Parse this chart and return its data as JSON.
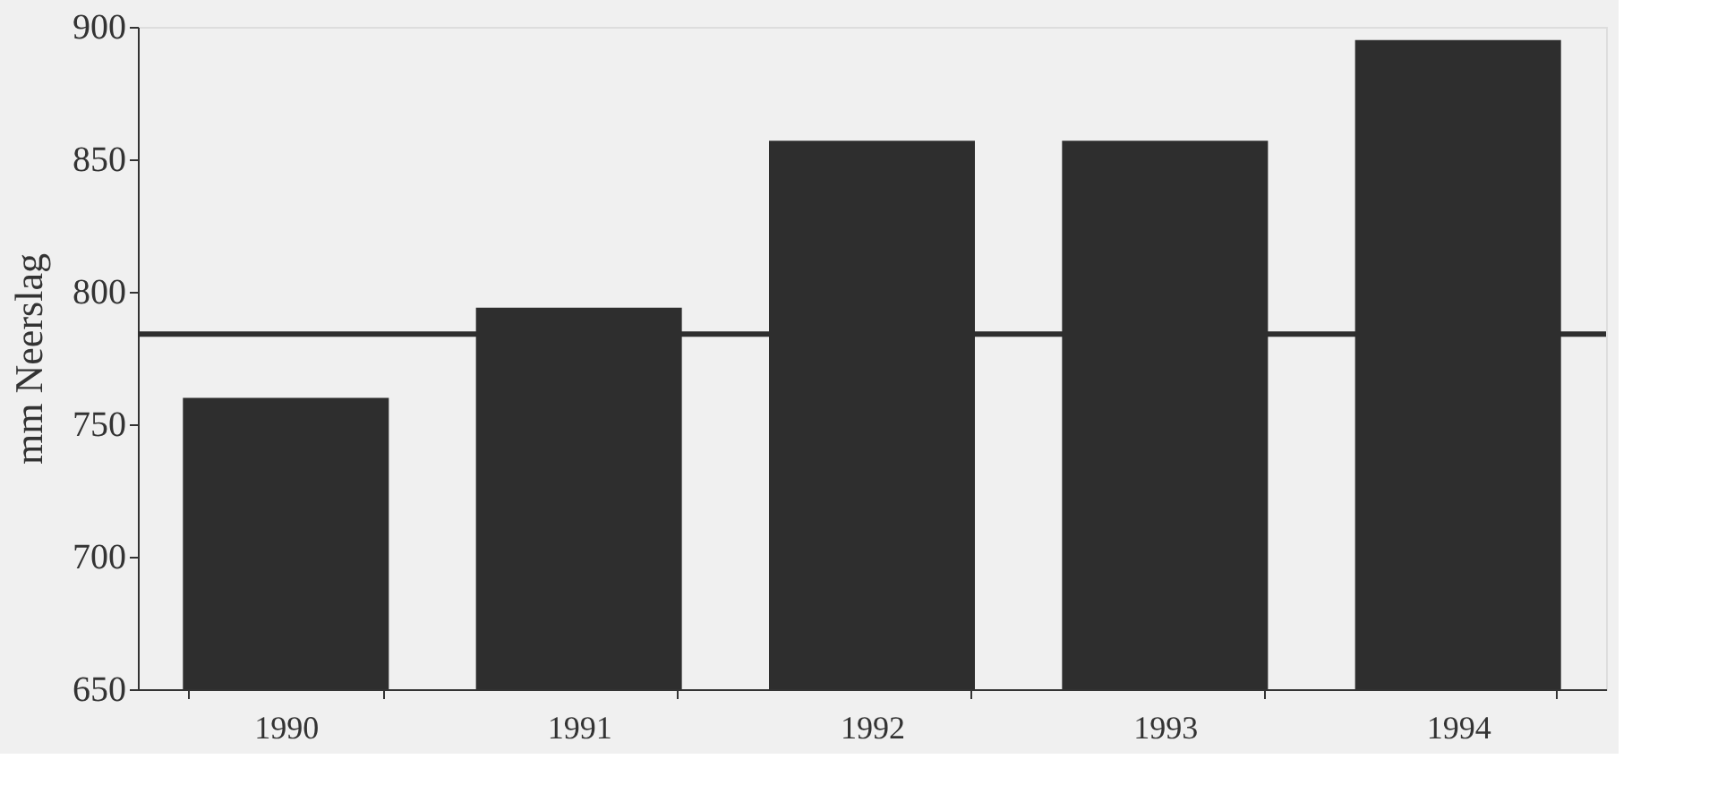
{
  "chart_data": {
    "type": "bar",
    "ylabel": "mm Neerslag",
    "categories": [
      "1990",
      "1991",
      "1992",
      "1993",
      "1994"
    ],
    "values": [
      760,
      794,
      857,
      857,
      895
    ],
    "color": "#2e2e2e",
    "ylim": [
      650,
      900
    ],
    "yticks": [
      650,
      700,
      750,
      800,
      850,
      900
    ],
    "ref_lines": [
      {
        "axis": "y",
        "value": 784,
        "color": "#2e2e2e"
      }
    ],
    "grid": false
  }
}
